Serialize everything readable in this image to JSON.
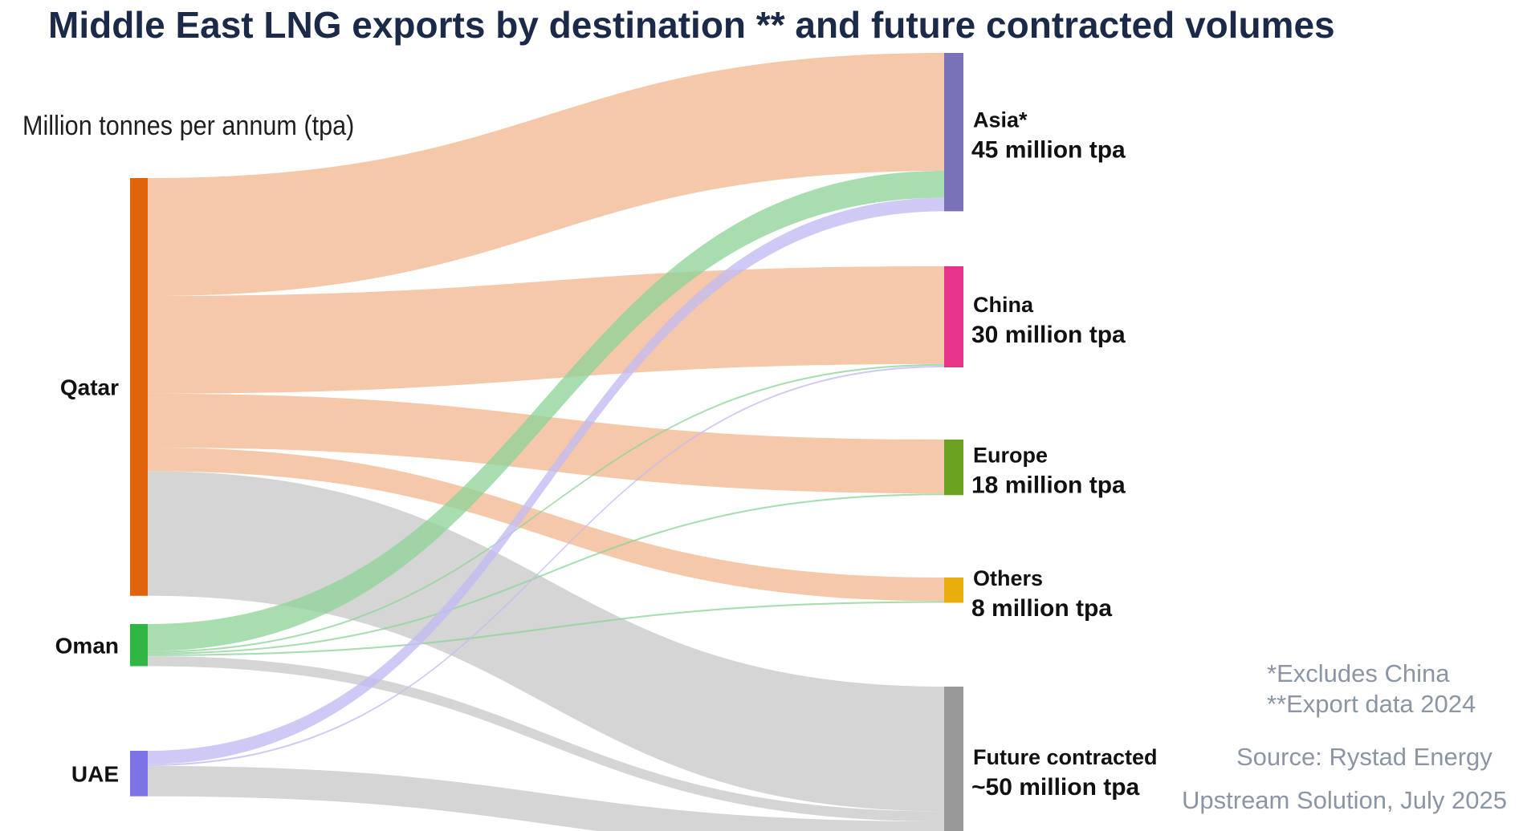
{
  "title": "Middle East LNG exports by destination ** and future contracted volumes",
  "unit_label": "Million tonnes per annum (tpa)",
  "notes": {
    "excludes": "*Excludes China",
    "export_data": "**Export data 2024",
    "source": "Source: Rystad Energy",
    "credit": "Upstream Solution, July 2025"
  },
  "chart_data": {
    "type": "sankey",
    "title": "Middle East LNG exports by destination ** and future contracted volumes",
    "unit": "Million tonnes per annum (tpa)",
    "sources": [
      {
        "id": "qatar",
        "label": "Qatar",
        "color": "#e0640c"
      },
      {
        "id": "oman",
        "label": "Oman",
        "color": "#2fb644"
      },
      {
        "id": "uae",
        "label": "UAE",
        "color": "#7b72e6"
      }
    ],
    "targets": [
      {
        "id": "asia",
        "name": "Asia*",
        "volume_label": "45 million tpa",
        "value": 45,
        "color": "#7a72b9"
      },
      {
        "id": "china",
        "name": "China",
        "volume_label": "30 million tpa",
        "value": 30,
        "color": "#e6338a"
      },
      {
        "id": "europe",
        "name": "Europe",
        "volume_label": "18 million tpa",
        "value": 18,
        "color": "#6aa220"
      },
      {
        "id": "others",
        "name": "Others",
        "volume_label": "8 million tpa",
        "value": 8,
        "color": "#e9ad0c"
      },
      {
        "id": "future",
        "name": "Future contracted",
        "volume_label": "~50 million tpa",
        "value": 50,
        "color": "#999999"
      }
    ],
    "flow_colors": {
      "qatar": "#f1b98f",
      "oman": "#8fd49a",
      "uae": "#c2bbf2",
      "future": "#d3d3d3"
    },
    "flows": [
      {
        "from": "qatar",
        "to": "asia",
        "value": 35
      },
      {
        "from": "qatar",
        "to": "china",
        "value": 29
      },
      {
        "from": "qatar",
        "to": "europe",
        "value": 16
      },
      {
        "from": "qatar",
        "to": "others",
        "value": 7
      },
      {
        "from": "qatar",
        "to": "future",
        "value": 37
      },
      {
        "from": "oman",
        "to": "asia",
        "value": 8
      },
      {
        "from": "oman",
        "to": "china",
        "value": 0.5
      },
      {
        "from": "oman",
        "to": "europe",
        "value": 0.5
      },
      {
        "from": "oman",
        "to": "others",
        "value": 0.5
      },
      {
        "from": "oman",
        "to": "future",
        "value": 3
      },
      {
        "from": "uae",
        "to": "asia",
        "value": 4
      },
      {
        "from": "uae",
        "to": "china",
        "value": 0.5
      },
      {
        "from": "uae",
        "to": "future",
        "value": 9
      }
    ]
  }
}
